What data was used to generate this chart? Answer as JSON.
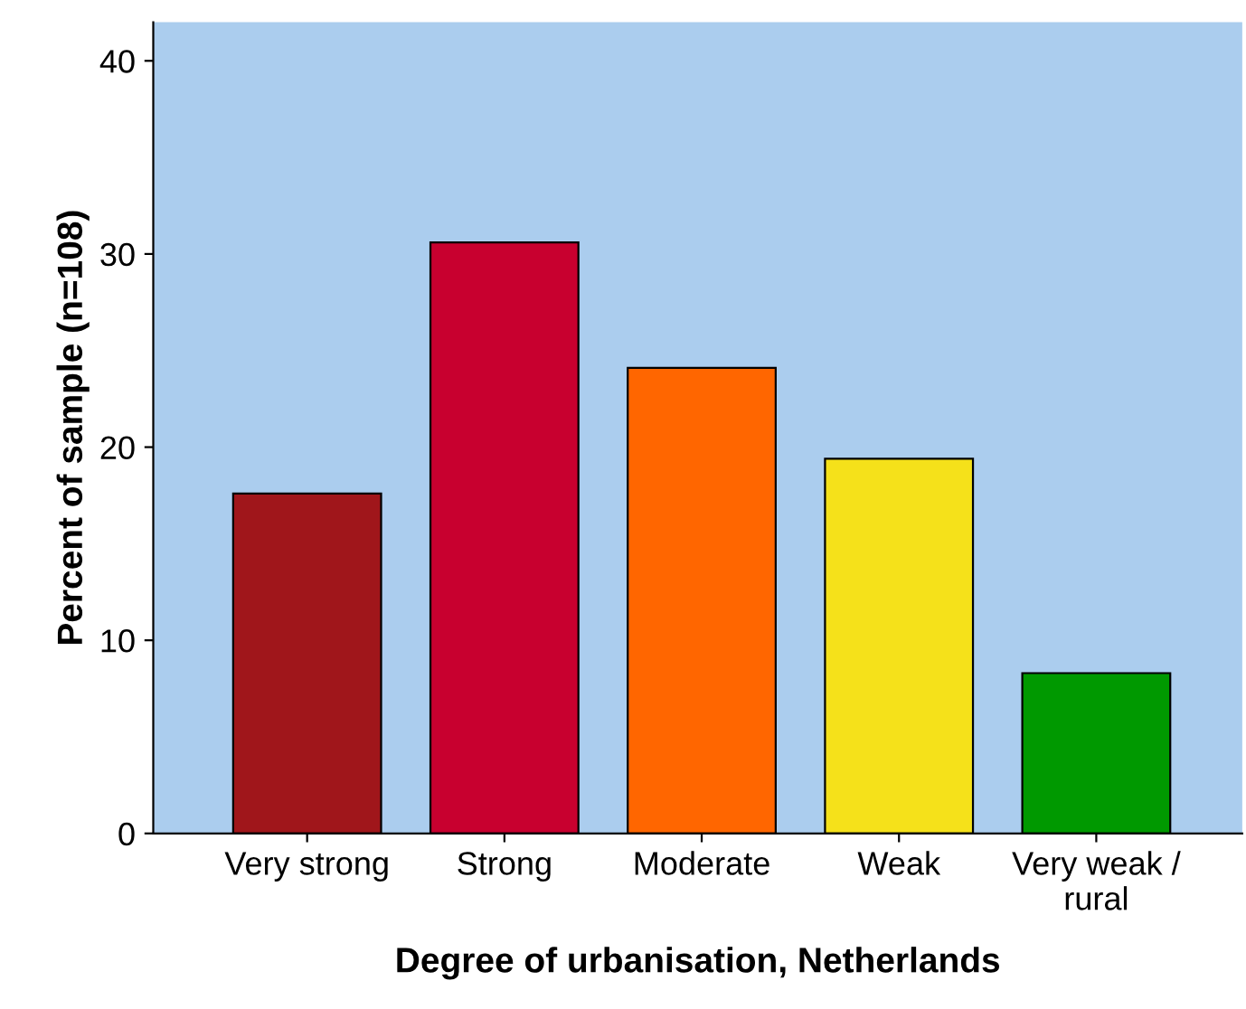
{
  "chart_data": {
    "type": "bar",
    "categories": [
      "Very strong",
      "Strong",
      "Moderate",
      "Weak",
      "Very weak /\nrural"
    ],
    "values": [
      17.6,
      30.6,
      24.1,
      19.4,
      8.3
    ],
    "colors": [
      "#a0161b",
      "#c8002f",
      "#ff6600",
      "#f5e11a",
      "#009900"
    ],
    "xlabel": "Degree of urbanisation, Netherlands",
    "ylabel": "Percent of sample (n=108)",
    "ylim": [
      0,
      42
    ],
    "yticks": [
      0,
      10,
      20,
      30,
      40
    ],
    "grid": false,
    "legend": false
  }
}
